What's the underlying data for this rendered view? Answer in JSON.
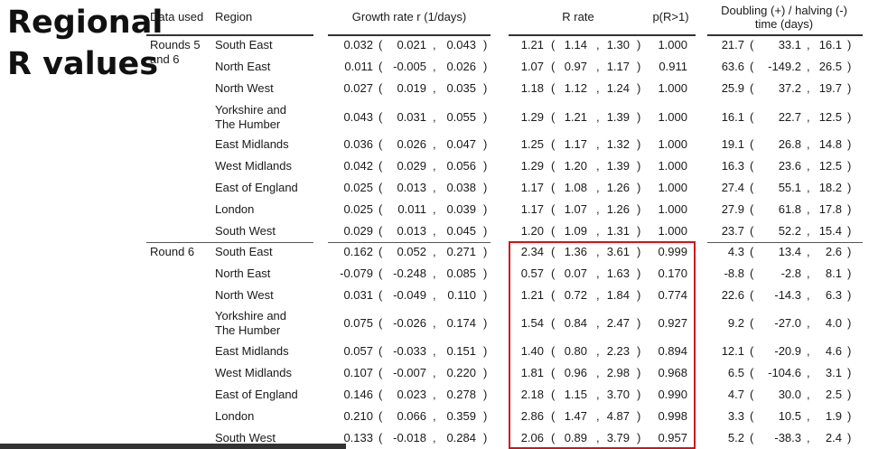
{
  "slide_title": [
    "Regional",
    "R values"
  ],
  "headers": {
    "data_used": "Data used",
    "region": "Region",
    "growth": "Growth rate r (1/days)",
    "r_rate": "R rate",
    "p": "p(R>1)",
    "doubling": [
      "Doubling (+) / halving (-)",
      "time (days)"
    ]
  },
  "groups": [
    {
      "label": [
        "Rounds 5",
        "and 6"
      ],
      "rows": [
        {
          "region": [
            "South East"
          ],
          "r": [
            "0.032",
            "0.021",
            "0.043"
          ],
          "R": [
            "1.21",
            "1.14",
            "1.30"
          ],
          "p": "1.000",
          "d": [
            "21.7",
            "33.1",
            "16.1"
          ]
        },
        {
          "region": [
            "North East"
          ],
          "r": [
            "0.011",
            "-0.005",
            "0.026"
          ],
          "R": [
            "1.07",
            "0.97",
            "1.17"
          ],
          "p": "0.911",
          "d": [
            "63.6",
            "-149.2",
            "26.5"
          ]
        },
        {
          "region": [
            "North West"
          ],
          "r": [
            "0.027",
            "0.019",
            "0.035"
          ],
          "R": [
            "1.18",
            "1.12",
            "1.24"
          ],
          "p": "1.000",
          "d": [
            "25.9",
            "37.2",
            "19.7"
          ]
        },
        {
          "region": [
            "Yorkshire and",
            "The Humber"
          ],
          "r": [
            "0.043",
            "0.031",
            "0.055"
          ],
          "R": [
            "1.29",
            "1.21",
            "1.39"
          ],
          "p": "1.000",
          "d": [
            "16.1",
            "22.7",
            "12.5"
          ]
        },
        {
          "region": [
            "East Midlands"
          ],
          "r": [
            "0.036",
            "0.026",
            "0.047"
          ],
          "R": [
            "1.25",
            "1.17",
            "1.32"
          ],
          "p": "1.000",
          "d": [
            "19.1",
            "26.8",
            "14.8"
          ]
        },
        {
          "region": [
            "West Midlands"
          ],
          "r": [
            "0.042",
            "0.029",
            "0.056"
          ],
          "R": [
            "1.29",
            "1.20",
            "1.39"
          ],
          "p": "1.000",
          "d": [
            "16.3",
            "23.6",
            "12.5"
          ]
        },
        {
          "region": [
            "East of England"
          ],
          "r": [
            "0.025",
            "0.013",
            "0.038"
          ],
          "R": [
            "1.17",
            "1.08",
            "1.26"
          ],
          "p": "1.000",
          "d": [
            "27.4",
            "55.1",
            "18.2"
          ]
        },
        {
          "region": [
            "London"
          ],
          "r": [
            "0.025",
            "0.011",
            "0.039"
          ],
          "R": [
            "1.17",
            "1.07",
            "1.26"
          ],
          "p": "1.000",
          "d": [
            "27.9",
            "61.8",
            "17.8"
          ]
        },
        {
          "region": [
            "South West"
          ],
          "r": [
            "0.029",
            "0.013",
            "0.045"
          ],
          "R": [
            "1.20",
            "1.09",
            "1.31"
          ],
          "p": "1.000",
          "d": [
            "23.7",
            "52.2",
            "15.4"
          ]
        }
      ]
    },
    {
      "label": [
        "Round 6"
      ],
      "rows": [
        {
          "region": [
            "South East"
          ],
          "r": [
            "0.162",
            "0.052",
            "0.271"
          ],
          "R": [
            "2.34",
            "1.36",
            "3.61"
          ],
          "p": "0.999",
          "d": [
            "4.3",
            "13.4",
            "2.6"
          ]
        },
        {
          "region": [
            "North East"
          ],
          "r": [
            "-0.079",
            "-0.248",
            "0.085"
          ],
          "R": [
            "0.57",
            "0.07",
            "1.63"
          ],
          "p": "0.170",
          "d": [
            "-8.8",
            "-2.8",
            "8.1"
          ]
        },
        {
          "region": [
            "North West"
          ],
          "r": [
            "0.031",
            "-0.049",
            "0.110"
          ],
          "R": [
            "1.21",
            "0.72",
            "1.84"
          ],
          "p": "0.774",
          "d": [
            "22.6",
            "-14.3",
            "6.3"
          ]
        },
        {
          "region": [
            "Yorkshire and",
            "The Humber"
          ],
          "r": [
            "0.075",
            "-0.026",
            "0.174"
          ],
          "R": [
            "1.54",
            "0.84",
            "2.47"
          ],
          "p": "0.927",
          "d": [
            "9.2",
            "-27.0",
            "4.0"
          ]
        },
        {
          "region": [
            "East Midlands"
          ],
          "r": [
            "0.057",
            "-0.033",
            "0.151"
          ],
          "R": [
            "1.40",
            "0.80",
            "2.23"
          ],
          "p": "0.894",
          "d": [
            "12.1",
            "-20.9",
            "4.6"
          ]
        },
        {
          "region": [
            "West Midlands"
          ],
          "r": [
            "0.107",
            "-0.007",
            "0.220"
          ],
          "R": [
            "1.81",
            "0.96",
            "2.98"
          ],
          "p": "0.968",
          "d": [
            "6.5",
            "-104.6",
            "3.1"
          ]
        },
        {
          "region": [
            "East of England"
          ],
          "r": [
            "0.146",
            "0.023",
            "0.278"
          ],
          "R": [
            "2.18",
            "1.15",
            "3.70"
          ],
          "p": "0.990",
          "d": [
            "4.7",
            "30.0",
            "2.5"
          ]
        },
        {
          "region": [
            "London"
          ],
          "r": [
            "0.210",
            "0.066",
            "0.359"
          ],
          "R": [
            "2.86",
            "1.47",
            "4.87"
          ],
          "p": "0.998",
          "d": [
            "3.3",
            "10.5",
            "1.9"
          ]
        },
        {
          "region": [
            "South West"
          ],
          "r": [
            "0.133",
            "-0.018",
            "0.284"
          ],
          "R": [
            "2.06",
            "0.89",
            "3.79"
          ],
          "p": "0.957",
          "d": [
            "5.2",
            "-38.3",
            "2.4"
          ]
        }
      ]
    }
  ],
  "highlight_color": "#d0141c"
}
